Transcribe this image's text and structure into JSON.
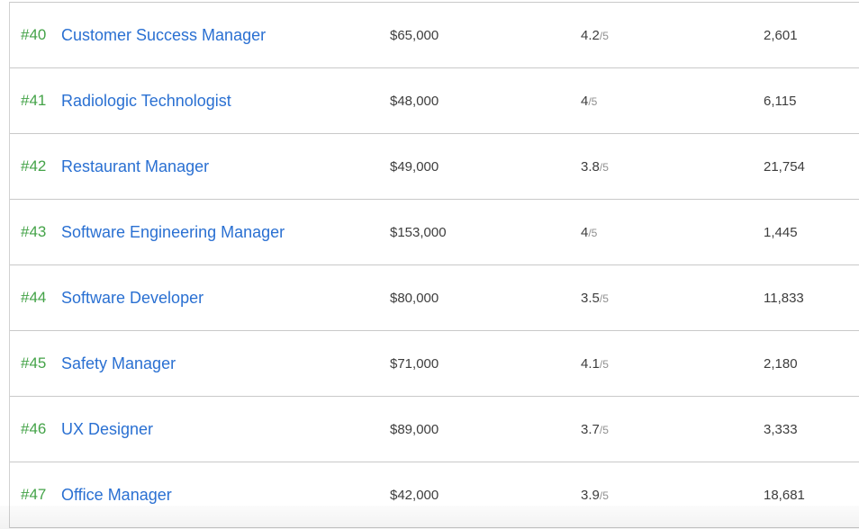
{
  "colors": {
    "rank_green": "#44a348",
    "link_blue": "#2a70d2",
    "text_dark": "#3d3d3d",
    "rating_denom_gray": "#8f8f8f",
    "border_gray": "#c9c9c9"
  },
  "table": {
    "rows": [
      {
        "rank": "#40",
        "title": "Customer Success Manager",
        "salary": "$65,000",
        "rating": "4.2",
        "rating_denom": "/5",
        "count": "2,601"
      },
      {
        "rank": "#41",
        "title": "Radiologic Technologist",
        "salary": "$48,000",
        "rating": "4",
        "rating_denom": "/5",
        "count": "6,115"
      },
      {
        "rank": "#42",
        "title": "Restaurant Manager",
        "salary": "$49,000",
        "rating": "3.8",
        "rating_denom": "/5",
        "count": "21,754"
      },
      {
        "rank": "#43",
        "title": "Software Engineering Manager",
        "salary": "$153,000",
        "rating": "4",
        "rating_denom": "/5",
        "count": "1,445"
      },
      {
        "rank": "#44",
        "title": "Software Developer",
        "salary": "$80,000",
        "rating": "3.5",
        "rating_denom": "/5",
        "count": "11,833"
      },
      {
        "rank": "#45",
        "title": "Safety Manager",
        "salary": "$71,000",
        "rating": "4.1",
        "rating_denom": "/5",
        "count": "2,180"
      },
      {
        "rank": "#46",
        "title": "UX Designer",
        "salary": "$89,000",
        "rating": "3.7",
        "rating_denom": "/5",
        "count": "3,333"
      },
      {
        "rank": "#47",
        "title": "Office Manager",
        "salary": "$42,000",
        "rating": "3.9",
        "rating_denom": "/5",
        "count": "18,681"
      }
    ]
  }
}
